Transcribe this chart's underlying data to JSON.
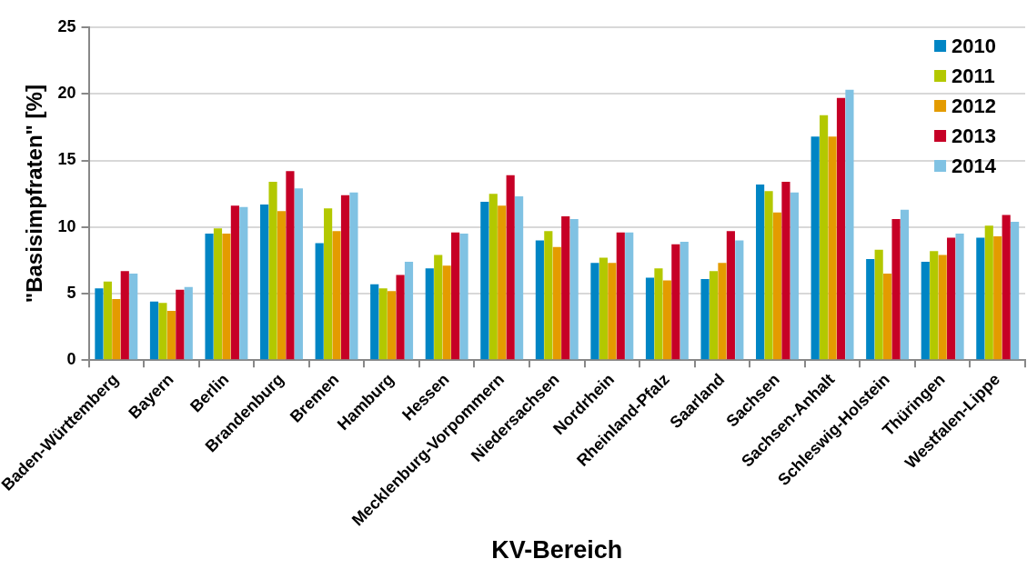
{
  "chart_data": {
    "type": "bar",
    "xlabel": "KV-Bereich",
    "ylabel": "\"Basisimpfraten\" [%]",
    "categories": [
      "Baden-Württemberg",
      "Bayern",
      "Berlin",
      "Brandenburg",
      "Bremen",
      "Hamburg",
      "Hessen",
      "Mecklenburg-Vorpommern",
      "Niedersachsen",
      "Nordrhein",
      "Rheinland-Pfalz",
      "Saarland",
      "Sachsen",
      "Sachsen-Anhalt",
      "Schleswig-Holstein",
      "Thüringen",
      "Westfalen-Lippe"
    ],
    "series": [
      {
        "name": "2010",
        "color": "#0085c4",
        "values": [
          5.4,
          4.4,
          9.5,
          11.7,
          8.8,
          5.7,
          6.9,
          11.9,
          9.0,
          7.3,
          6.2,
          6.1,
          13.2,
          16.8,
          7.6,
          7.4,
          9.2
        ]
      },
      {
        "name": "2011",
        "color": "#b3c800",
        "values": [
          5.9,
          4.3,
          9.9,
          13.4,
          11.4,
          5.4,
          7.9,
          12.5,
          9.7,
          7.7,
          6.9,
          6.7,
          12.7,
          18.4,
          8.3,
          8.2,
          10.1
        ]
      },
      {
        "name": "2012",
        "color": "#e49b00",
        "values": [
          4.6,
          3.7,
          9.5,
          11.2,
          9.7,
          5.2,
          7.1,
          11.6,
          8.5,
          7.3,
          6.0,
          7.3,
          11.1,
          16.8,
          6.5,
          7.9,
          9.3
        ]
      },
      {
        "name": "2013",
        "color": "#c60026",
        "values": [
          6.7,
          5.3,
          11.6,
          14.2,
          12.4,
          6.4,
          9.6,
          13.9,
          10.8,
          9.6,
          8.7,
          9.7,
          13.4,
          19.7,
          10.6,
          9.2,
          10.9
        ]
      },
      {
        "name": "2014",
        "color": "#80c2e3",
        "values": [
          6.5,
          5.5,
          11.5,
          12.9,
          12.6,
          7.4,
          9.5,
          12.3,
          10.6,
          9.6,
          8.9,
          9.0,
          12.6,
          20.3,
          11.3,
          9.5,
          10.4
        ]
      }
    ],
    "ylim": [
      0,
      25
    ],
    "yticks": [
      0,
      5,
      10,
      15,
      20,
      25
    ],
    "grid": "y",
    "legend": "top right"
  }
}
